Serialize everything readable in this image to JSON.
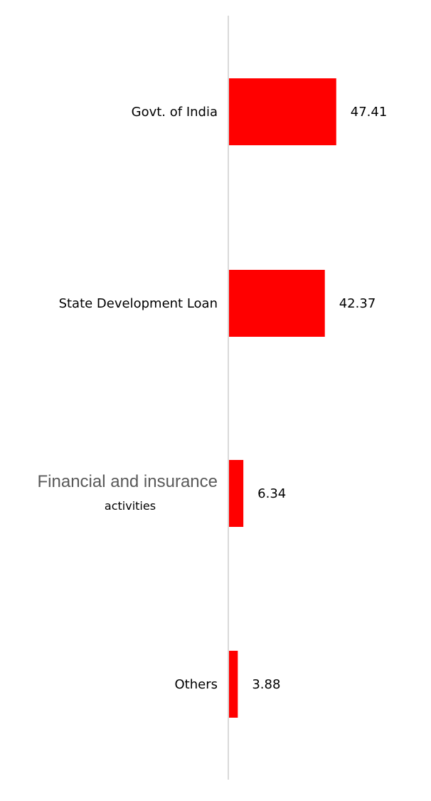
{
  "chart_data": {
    "type": "bar",
    "orientation": "horizontal",
    "categories": [
      "Govt. of India",
      "State Development Loan",
      "Financial and insurance activities",
      "Others"
    ],
    "category_label_lines": [
      [
        "Govt. of India"
      ],
      [
        "State Development Loan"
      ],
      [
        "Financial and insurance",
        "activities"
      ],
      [
        "Others"
      ]
    ],
    "values": [
      47.41,
      42.37,
      6.34,
      3.88
    ],
    "data_labels": [
      "47.41",
      "42.37",
      "6.34",
      "3.88"
    ],
    "xlim": [
      0,
      100
    ],
    "grid": false,
    "legend": "none",
    "colors": {
      "bar": "#ff0000",
      "axis": "#d9d9d9"
    }
  }
}
